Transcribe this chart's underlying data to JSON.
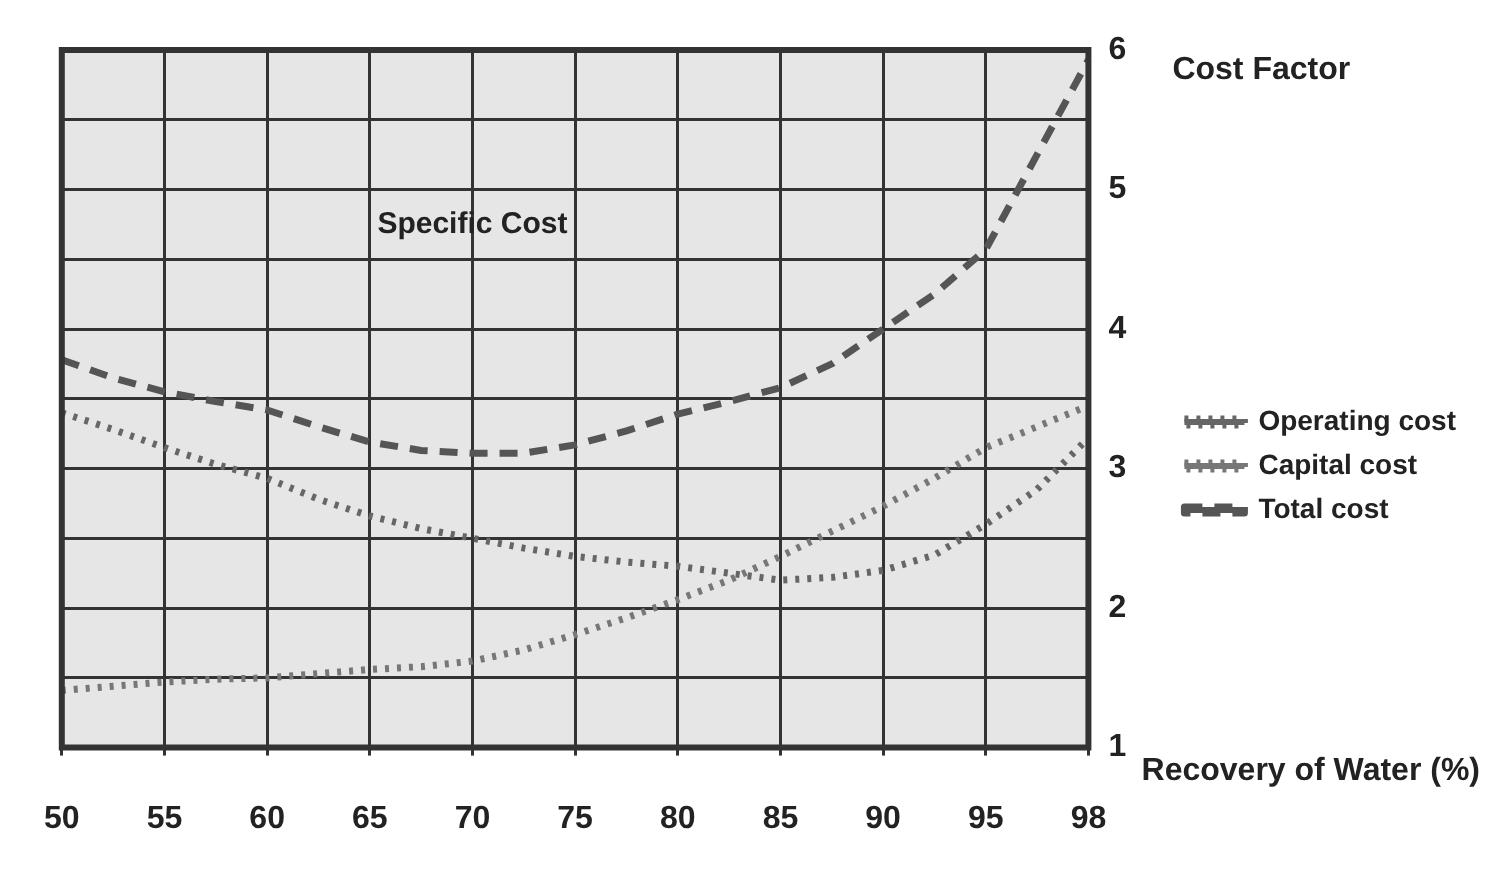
{
  "chart_data": {
    "type": "line",
    "xlabel": "Recovery of Water (%)",
    "ylabel": "Cost Factor",
    "annotations": [
      "Specific Cost"
    ],
    "categories": [
      "50",
      null,
      "55",
      null,
      "60",
      null,
      "65",
      null,
      "70",
      null,
      "75",
      null,
      "80",
      null,
      "85",
      null,
      "90",
      null,
      "95",
      null,
      "98"
    ],
    "series": [
      {
        "name": "Operating cost",
        "color": "#666666",
        "line_style": "dotted",
        "values": [
          3.4,
          3.28,
          3.15,
          3.03,
          2.93,
          2.78,
          2.66,
          2.57,
          2.5,
          2.43,
          2.37,
          2.33,
          2.3,
          2.25,
          2.2,
          2.22,
          2.27,
          2.38,
          2.6,
          2.85,
          3.22
        ]
      },
      {
        "name": "Capital cost",
        "color": "#777777",
        "line_style": "dotted",
        "values": [
          1.41,
          1.44,
          1.47,
          1.49,
          1.5,
          1.53,
          1.56,
          1.58,
          1.62,
          1.7,
          1.81,
          1.93,
          2.06,
          2.2,
          2.37,
          2.55,
          2.73,
          2.93,
          3.15,
          3.3,
          3.45
        ]
      },
      {
        "name": "Total cost",
        "color": "#555555",
        "line_style": "dashed",
        "values": [
          3.78,
          3.65,
          3.55,
          3.48,
          3.42,
          3.3,
          3.19,
          3.13,
          3.11,
          3.11,
          3.17,
          3.27,
          3.39,
          3.48,
          3.58,
          3.75,
          4.0,
          4.25,
          4.57,
          5.25,
          5.93
        ]
      }
    ],
    "ylim": [
      1,
      6
    ],
    "yticks": [
      1,
      {
        "value": 1.5,
        "label": null
      },
      2,
      {
        "value": 2.5,
        "label": null
      },
      3,
      {
        "value": 3.5,
        "label": null
      },
      4,
      {
        "value": 4.5,
        "label": null
      },
      5,
      {
        "value": 5.5,
        "label": null
      },
      6
    ],
    "grid": true,
    "legend": "right"
  }
}
